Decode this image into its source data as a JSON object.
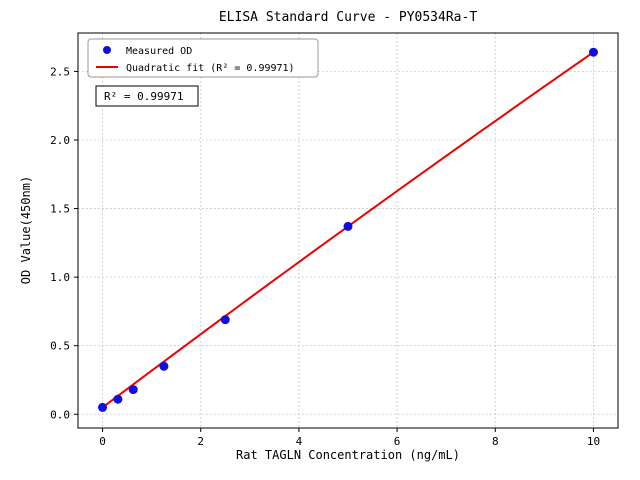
{
  "chart_data": {
    "type": "scatter",
    "title": "ELISA Standard Curve - PY0534Ra-T",
    "xlabel": "Rat TAGLN Concentration (ng/mL)",
    "ylabel": "OD Value(450nm)",
    "xlim": [
      -0.5,
      10.5
    ],
    "ylim": [
      -0.1,
      2.78
    ],
    "x_ticks": [
      0,
      2,
      4,
      6,
      8,
      10
    ],
    "y_ticks": [
      0.0,
      0.5,
      1.0,
      1.5,
      2.0,
      2.5
    ],
    "grid": true,
    "grid_color": "#b8b8b8",
    "legend_position": "upper left",
    "annotation": "R² = 0.99971",
    "series": [
      {
        "name": "Measured OD",
        "type": "scatter",
        "color": "#0f0fdd",
        "x": [
          0,
          0.3125,
          0.625,
          1.25,
          2.5,
          5,
          10
        ],
        "y": [
          0.05,
          0.11,
          0.18,
          0.35,
          0.69,
          1.37,
          2.64
        ]
      },
      {
        "name": "Quadratic fit (R² = 0.99971)",
        "type": "line",
        "color": "#ee0000",
        "fit": {
          "a": -0.001,
          "b": 0.269,
          "c": 0.05
        },
        "x_range": [
          0,
          10
        ]
      }
    ]
  }
}
